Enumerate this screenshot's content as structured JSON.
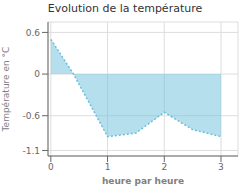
{
  "chart_data": {
    "type": "area",
    "title": "Evolution de la température",
    "xlabel": "heure par heure",
    "ylabel": "Température en °C",
    "x": [
      0,
      0.4,
      1.0,
      1.5,
      2.0,
      2.5,
      3.0
    ],
    "values": [
      0.5,
      0.0,
      -0.9,
      -0.85,
      -0.55,
      -0.8,
      -0.9
    ],
    "color": "#6bbfda",
    "line_style": "dotted",
    "xlim": [
      -0.05,
      3.3
    ],
    "ylim": [
      -1.18,
      0.75
    ],
    "xticks": [
      0,
      1,
      2,
      3
    ],
    "yticks": [
      -1.1,
      -0.6,
      0.0,
      0.6
    ],
    "grid": true
  }
}
